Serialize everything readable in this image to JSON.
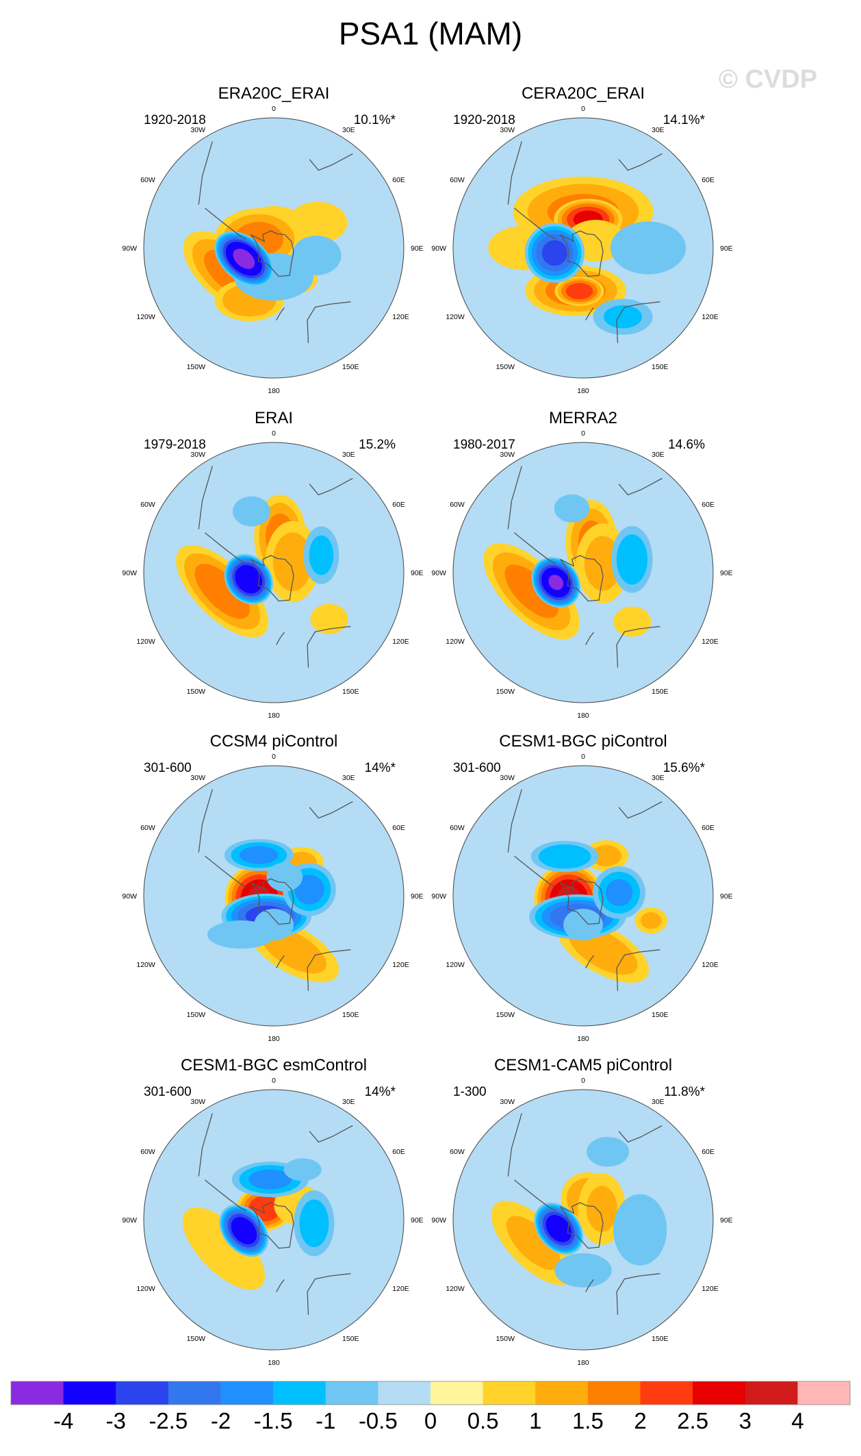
{
  "title": "PSA1 (MAM)",
  "watermark": "© CVDP",
  "lon_labels": [
    "0",
    "30E",
    "60E",
    "90E",
    "120E",
    "150E",
    "180",
    "150W",
    "120W",
    "90W",
    "60W",
    "30W"
  ],
  "chart_data": {
    "type": "heatmap",
    "variable": "PSA1 regression pattern (Southern Hemisphere polar stereographic)",
    "colorbar": {
      "levels": [
        -4,
        -3,
        -2.5,
        -2,
        -1.5,
        -1,
        -0.5,
        0,
        0.5,
        1,
        1.5,
        2,
        2.5,
        3,
        4
      ],
      "labels": [
        "-4",
        "-3",
        "-2.5",
        "-2",
        "-1.5",
        "-1",
        "-0.5",
        "0",
        "0.5",
        "1",
        "1.5",
        "2",
        "2.5",
        "3",
        "4"
      ],
      "colors": [
        "#8a2be2",
        "#1400ff",
        "#2b45ee",
        "#3377ee",
        "#1e90ff",
        "#00bfff",
        "#6fc6f2",
        "#b4dcf5",
        "#fff59a",
        "#ffd32a",
        "#ffad0d",
        "#ff7f00",
        "#ff3c10",
        "#e60000",
        "#d11a1a",
        "#ffb6b6"
      ]
    },
    "panels": [
      {
        "title": "ERA20C_ERAI",
        "period": "1920-2018",
        "pct": "10.1%*",
        "features": [
          {
            "lon": 0,
            "colat": 15,
            "r": 65,
            "sx": 1.0,
            "sy": 0.6,
            "rot": 0,
            "v": 0.8
          },
          {
            "lon": 60,
            "colat": 35,
            "r": 60,
            "sx": 1.0,
            "sy": 0.7,
            "rot": 0,
            "v": 0.7
          },
          {
            "lon": 100,
            "colat": 30,
            "r": 50,
            "sx": 1.0,
            "sy": 0.8,
            "rot": 0,
            "v": -0.7
          },
          {
            "lon": 180,
            "colat": 20,
            "r": 80,
            "sx": 1.0,
            "sy": 0.6,
            "rot": 0,
            "v": -0.7
          },
          {
            "lon": -60,
            "colat": 12,
            "r": 75,
            "sx": 1.0,
            "sy": 0.7,
            "rot": 0,
            "v": 1.6
          },
          {
            "lon": -110,
            "colat": 22,
            "r": 75,
            "sx": 0.7,
            "sy": 0.45,
            "rot": 40,
            "v": -4.2
          },
          {
            "lon": -120,
            "colat": 35,
            "r": 95,
            "sx": 1.0,
            "sy": 0.5,
            "rot": 40,
            "v": 1.6
          },
          {
            "lon": -155,
            "colat": 40,
            "r": 60,
            "sx": 1.0,
            "sy": 0.6,
            "rot": 0,
            "v": 1.4
          },
          {
            "lon": 150,
            "colat": 25,
            "r": 50,
            "sx": 1.0,
            "sy": 0.6,
            "rot": 0,
            "v": 0.8
          }
        ]
      },
      {
        "title": "CERA20C_ERAI",
        "period": "1920-2018",
        "pct": "14.1%*",
        "features": [
          {
            "lon": 0,
            "colat": 25,
            "r": 120,
            "sx": 1.0,
            "sy": 0.5,
            "rot": 0,
            "v": 1.5
          },
          {
            "lon": 10,
            "colat": 20,
            "r": 55,
            "sx": 1.0,
            "sy": 0.6,
            "rot": 0,
            "v": 2.6
          },
          {
            "lon": -100,
            "colat": 20,
            "r": 60,
            "sx": 0.8,
            "sy": 0.8,
            "rot": 0,
            "v": -2.6
          },
          {
            "lon": -90,
            "colat": 40,
            "r": 70,
            "sx": 1.0,
            "sy": 0.6,
            "rot": 0,
            "v": 0.9
          },
          {
            "lon": -170,
            "colat": 30,
            "r": 85,
            "sx": 1.0,
            "sy": 0.5,
            "rot": 0,
            "v": 1.7
          },
          {
            "lon": -175,
            "colat": 30,
            "r": 40,
            "sx": 1.0,
            "sy": 0.6,
            "rot": 0,
            "v": 2.3
          },
          {
            "lon": 150,
            "colat": 55,
            "r": 55,
            "sx": 1.0,
            "sy": 0.6,
            "rot": 0,
            "v": -1.0
          },
          {
            "lon": 90,
            "colat": 45,
            "r": 80,
            "sx": 1.0,
            "sy": 0.7,
            "rot": 0,
            "v": -0.6
          },
          {
            "lon": 60,
            "colat": 10,
            "r": 60,
            "sx": 1.0,
            "sy": 0.7,
            "rot": 0,
            "v": 0.7
          }
        ]
      },
      {
        "title": "ERAI",
        "period": "1979-2018",
        "pct": "15.2%",
        "features": [
          {
            "lon": 10,
            "colat": 25,
            "r": 55,
            "sx": 0.8,
            "sy": 1.3,
            "rot": 0,
            "v": 1.6
          },
          {
            "lon": 60,
            "colat": 15,
            "r": 60,
            "sx": 0.8,
            "sy": 1.2,
            "rot": 0,
            "v": 1.2
          },
          {
            "lon": 70,
            "colat": 35,
            "r": 40,
            "sx": 0.8,
            "sy": 1.3,
            "rot": 0,
            "v": -1.1
          },
          {
            "lon": -105,
            "colat": 18,
            "r": 70,
            "sx": 0.6,
            "sy": 0.5,
            "rot": 50,
            "v": -3.8
          },
          {
            "lon": -110,
            "colat": 38,
            "r": 100,
            "sx": 1.0,
            "sy": 0.45,
            "rot": 45,
            "v": 1.7
          },
          {
            "lon": -20,
            "colat": 45,
            "r": 40,
            "sx": 1.0,
            "sy": 0.8,
            "rot": 0,
            "v": -0.6
          },
          {
            "lon": 130,
            "colat": 50,
            "r": 40,
            "sx": 1.0,
            "sy": 0.8,
            "rot": 0,
            "v": 0.6
          }
        ]
      },
      {
        "title": "MERRA2",
        "period": "1980-2017",
        "pct": "14.6%",
        "features": [
          {
            "lon": 15,
            "colat": 22,
            "r": 55,
            "sx": 0.8,
            "sy": 1.3,
            "rot": 0,
            "v": 1.5
          },
          {
            "lon": 65,
            "colat": 15,
            "r": 60,
            "sx": 0.8,
            "sy": 1.2,
            "rot": 0,
            "v": 1.1
          },
          {
            "lon": 75,
            "colat": 35,
            "r": 45,
            "sx": 0.8,
            "sy": 1.3,
            "rot": 0,
            "v": -1.3
          },
          {
            "lon": -110,
            "colat": 20,
            "r": 70,
            "sx": 0.6,
            "sy": 0.5,
            "rot": 50,
            "v": -4.0
          },
          {
            "lon": -110,
            "colat": 38,
            "r": 105,
            "sx": 1.0,
            "sy": 0.45,
            "rot": 45,
            "v": 1.6
          },
          {
            "lon": -10,
            "colat": 45,
            "r": 40,
            "sx": 1.0,
            "sy": 0.8,
            "rot": 0,
            "v": -0.5
          },
          {
            "lon": 135,
            "colat": 48,
            "r": 40,
            "sx": 1.0,
            "sy": 0.8,
            "rot": 0,
            "v": 0.6
          }
        ]
      },
      {
        "title": "CCSM4 piControl",
        "period": "301-600",
        "pct": "14%*",
        "features": [
          {
            "lon": -100,
            "colat": 10,
            "r": 55,
            "sx": 1.0,
            "sy": 1.0,
            "rot": 0,
            "v": 3.0
          },
          {
            "lon": -160,
            "colat": 15,
            "r": 60,
            "sx": 1.2,
            "sy": 0.6,
            "rot": 0,
            "v": -2.7
          },
          {
            "lon": -20,
            "colat": 30,
            "r": 45,
            "sx": 1.3,
            "sy": 0.6,
            "rot": 0,
            "v": -1.6
          },
          {
            "lon": 80,
            "colat": 25,
            "r": 50,
            "sx": 0.9,
            "sy": 0.9,
            "rot": 0,
            "v": -1.6
          },
          {
            "lon": 160,
            "colat": 40,
            "r": 90,
            "sx": 1.0,
            "sy": 0.45,
            "rot": 30,
            "v": 1.2
          },
          {
            "lon": 40,
            "colat": 30,
            "r": 40,
            "sx": 1.0,
            "sy": 0.7,
            "rot": 0,
            "v": 1.1
          },
          {
            "lon": -140,
            "colat": 35,
            "r": 60,
            "sx": 1.2,
            "sy": 0.5,
            "rot": 0,
            "v": -0.6
          },
          {
            "lon": 180,
            "colat": 20,
            "r": 40,
            "sx": 1.0,
            "sy": 0.8,
            "rot": 0,
            "v": -0.7
          },
          {
            "lon": 30,
            "colat": 15,
            "r": 35,
            "sx": 1.0,
            "sy": 0.8,
            "rot": 0,
            "v": -0.8
          }
        ]
      },
      {
        "title": "CESM1-BGC piControl",
        "period": "301-600",
        "pct": "15.6%*",
        "features": [
          {
            "lon": -100,
            "colat": 10,
            "r": 55,
            "sx": 1.0,
            "sy": 1.0,
            "rot": 0,
            "v": 3.0
          },
          {
            "lon": -165,
            "colat": 15,
            "r": 60,
            "sx": 1.3,
            "sy": 0.6,
            "rot": 0,
            "v": -2.4
          },
          {
            "lon": -25,
            "colat": 30,
            "r": 45,
            "sx": 1.3,
            "sy": 0.6,
            "rot": 0,
            "v": -1.4
          },
          {
            "lon": 85,
            "colat": 25,
            "r": 50,
            "sx": 0.9,
            "sy": 0.9,
            "rot": 0,
            "v": -1.5
          },
          {
            "lon": 160,
            "colat": 40,
            "r": 90,
            "sx": 1.0,
            "sy": 0.45,
            "rot": 30,
            "v": 1.3
          },
          {
            "lon": 30,
            "colat": 32,
            "r": 40,
            "sx": 1.0,
            "sy": 0.7,
            "rot": 0,
            "v": 1.1
          },
          {
            "lon": 110,
            "colat": 50,
            "r": 30,
            "sx": 1.0,
            "sy": 0.8,
            "rot": 0,
            "v": 1.0
          },
          {
            "lon": 180,
            "colat": 20,
            "r": 40,
            "sx": 1.0,
            "sy": 0.8,
            "rot": 0,
            "v": -0.7
          }
        ]
      },
      {
        "title": "CESM1-BGC esmControl",
        "period": "301-600",
        "pct": "14%*",
        "features": [
          {
            "lon": -40,
            "colat": 10,
            "r": 45,
            "sx": 1.0,
            "sy": 0.8,
            "rot": 0,
            "v": 2.4
          },
          {
            "lon": -110,
            "colat": 22,
            "r": 65,
            "sx": 0.7,
            "sy": 0.5,
            "rot": 50,
            "v": -3.6
          },
          {
            "lon": -5,
            "colat": 28,
            "r": 50,
            "sx": 1.3,
            "sy": 0.6,
            "rot": 0,
            "v": -1.6
          },
          {
            "lon": 95,
            "colat": 28,
            "r": 45,
            "sx": 0.8,
            "sy": 1.3,
            "rot": 0,
            "v": -1.2
          },
          {
            "lon": -120,
            "colat": 40,
            "r": 100,
            "sx": 1.0,
            "sy": 0.45,
            "rot": 45,
            "v": 0.9
          },
          {
            "lon": 60,
            "colat": 20,
            "r": 50,
            "sx": 1.0,
            "sy": 0.8,
            "rot": 0,
            "v": 0.7
          },
          {
            "lon": 30,
            "colat": 40,
            "r": 40,
            "sx": 1.0,
            "sy": 0.6,
            "rot": 0,
            "v": -0.6
          },
          {
            "lon": 180,
            "colat": 40,
            "r": 60,
            "sx": 1.0,
            "sy": 0.6,
            "rot": 0,
            "v": 0.4
          }
        ]
      },
      {
        "title": "CESM1-CAM5 piControl",
        "period": "1-300",
        "pct": "11.8%*",
        "features": [
          {
            "lon": -110,
            "colat": 18,
            "r": 65,
            "sx": 0.7,
            "sy": 0.5,
            "rot": 50,
            "v": -3.6
          },
          {
            "lon": 10,
            "colat": 15,
            "r": 45,
            "sx": 1.0,
            "sy": 1.0,
            "rot": 0,
            "v": 1.4
          },
          {
            "lon": 60,
            "colat": 15,
            "r": 55,
            "sx": 0.8,
            "sy": 1.2,
            "rot": 0,
            "v": 1.0
          },
          {
            "lon": -115,
            "colat": 38,
            "r": 100,
            "sx": 1.0,
            "sy": 0.45,
            "rot": 45,
            "v": 1.0
          },
          {
            "lon": 100,
            "colat": 40,
            "r": 60,
            "sx": 0.9,
            "sy": 1.2,
            "rot": 0,
            "v": -0.7
          },
          {
            "lon": 180,
            "colat": 35,
            "r": 65,
            "sx": 1.0,
            "sy": 0.6,
            "rot": 0,
            "v": -0.5
          },
          {
            "lon": 20,
            "colat": 50,
            "r": 45,
            "sx": 1.0,
            "sy": 0.7,
            "rot": 0,
            "v": -0.6
          }
        ]
      }
    ]
  }
}
